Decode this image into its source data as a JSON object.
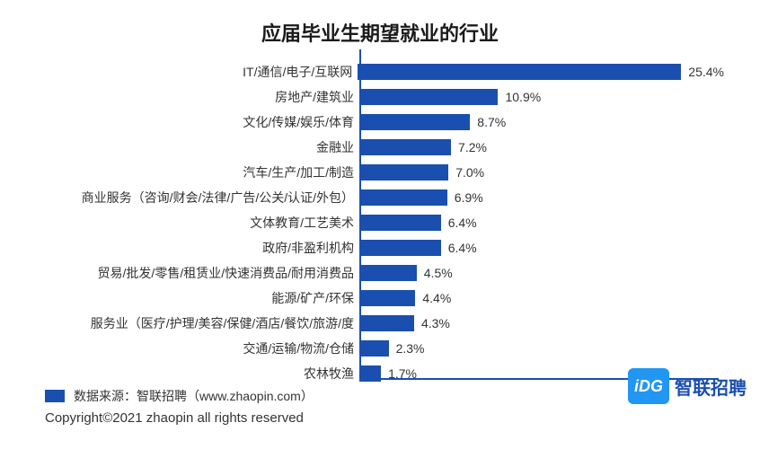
{
  "title": "应届毕业生期望就业的行业",
  "title_fontsize": 22,
  "bar_color": "#1a4fb0",
  "text_color": "#333333",
  "axis_color": "#1a4fb0",
  "background_color": "#ffffff",
  "max_value": 25.4,
  "bar_max_width": 360,
  "categories": [
    {
      "label": "IT/通信/电子/互联网",
      "value": 25.4,
      "display": "25.4%"
    },
    {
      "label": "房地产/建筑业",
      "value": 10.9,
      "display": "10.9%"
    },
    {
      "label": "文化/传媒/娱乐/体育",
      "value": 8.7,
      "display": "8.7%"
    },
    {
      "label": "金融业",
      "value": 7.2,
      "display": "7.2%"
    },
    {
      "label": "汽车/生产/加工/制造",
      "value": 7.0,
      "display": "7.0%"
    },
    {
      "label": "商业服务（咨询/财会/法律/广告/公关/认证/外包）",
      "value": 6.9,
      "display": "6.9%"
    },
    {
      "label": "文体教育/工艺美术",
      "value": 6.4,
      "display": "6.4%"
    },
    {
      "label": "政府/非盈利机构",
      "value": 6.4,
      "display": "6.4%"
    },
    {
      "label": "贸易/批发/零售/租赁业/快速消费品/耐用消费品",
      "value": 4.5,
      "display": "4.5%"
    },
    {
      "label": "能源/矿产/环保",
      "value": 4.4,
      "display": "4.4%"
    },
    {
      "label": "服务业（医疗/护理/美容/保健/酒店/餐饮/旅游/度",
      "value": 4.3,
      "display": "4.3%"
    },
    {
      "label": "交通/运输/物流/仓储",
      "value": 2.3,
      "display": "2.3%"
    },
    {
      "label": "农林牧渔",
      "value": 1.7,
      "display": "1.7%"
    }
  ],
  "legend_text": "数据来源：智联招聘（www.zhaopin.com）",
  "copyright_text": "Copyright©2021 zhaopin all rights reserved",
  "logo_box_text": "iDG",
  "logo_text": "智联招聘",
  "logo_bg_color": "#2196f3",
  "logo_text_color": "#1a4fb0"
}
